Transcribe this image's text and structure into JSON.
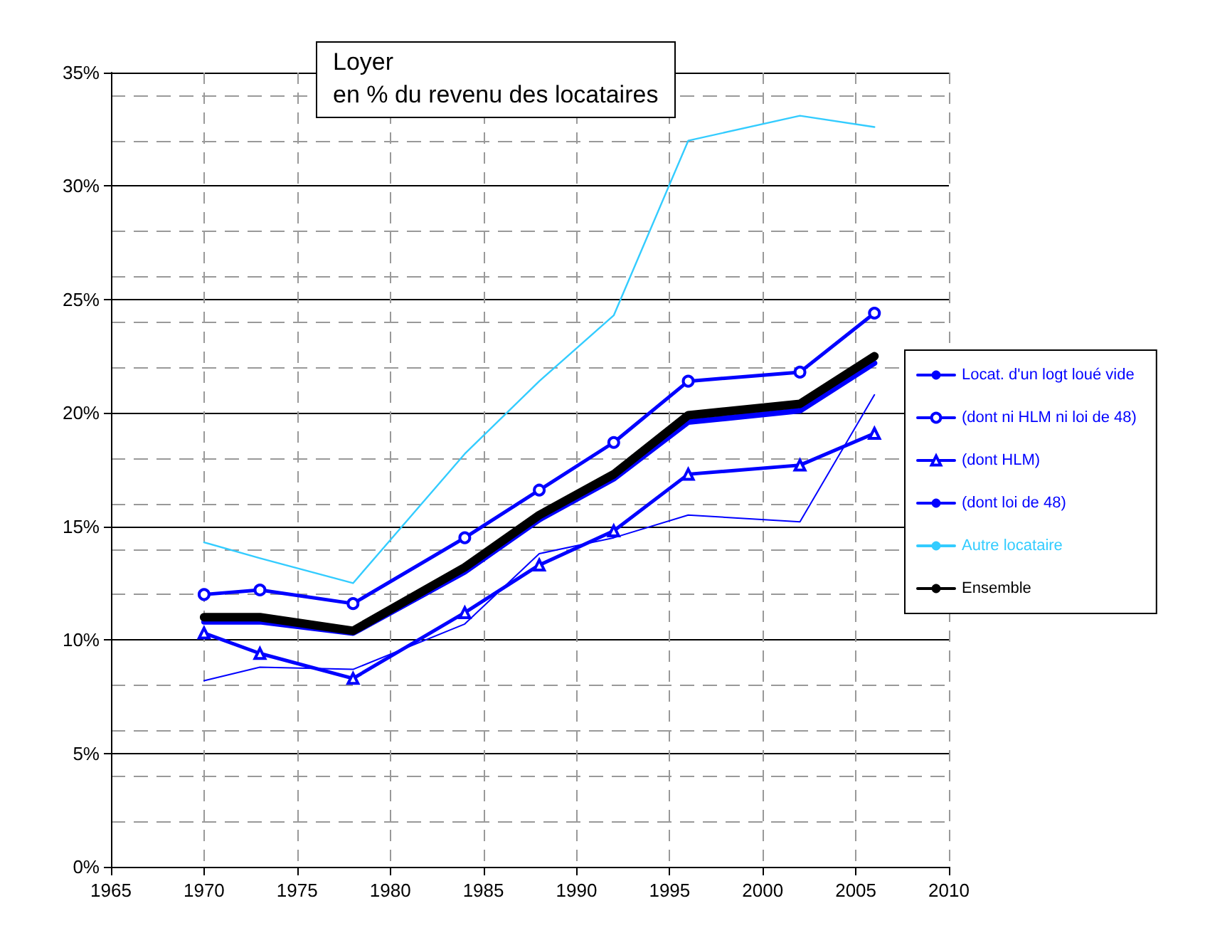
{
  "chart_data": {
    "type": "line",
    "title": "Loyer",
    "subtitle": "en % du revenu des locataires",
    "x": [
      1970,
      1973,
      1978,
      1984,
      1988,
      1992,
      1996,
      2002,
      2006
    ],
    "series": [
      {
        "name": "Locat. d'un logt loué vide",
        "color": "#0000ff",
        "marker": "none",
        "values": [
          10.8,
          10.8,
          10.3,
          13.0,
          15.3,
          17.1,
          19.6,
          20.1,
          22.2
        ]
      },
      {
        "name": "(dont ni HLM ni loi de 48)",
        "color": "#0000ff",
        "marker": "circle",
        "values": [
          12.0,
          12.2,
          11.6,
          14.5,
          16.6,
          18.7,
          21.4,
          21.8,
          24.4
        ]
      },
      {
        "name": "(dont HLM)",
        "color": "#0000ff",
        "marker": "triangle",
        "values": [
          10.3,
          9.4,
          8.3,
          11.2,
          13.3,
          14.8,
          17.3,
          17.7,
          19.1
        ]
      },
      {
        "name": "(dont loi de 48)",
        "color": "#0000ff",
        "marker": "none",
        "values": [
          8.2,
          8.8,
          8.7,
          10.7,
          13.8,
          14.5,
          15.5,
          15.2,
          20.8
        ]
      },
      {
        "name": "Autre locataire",
        "color": "#33ccff",
        "marker": "none",
        "values": [
          14.3,
          13.6,
          12.5,
          18.2,
          21.4,
          24.3,
          32.0,
          33.1,
          32.6
        ]
      },
      {
        "name": "Ensemble",
        "color": "#000000",
        "marker": "none",
        "values": [
          11.0,
          11.0,
          10.4,
          13.2,
          15.5,
          17.3,
          19.9,
          20.4,
          22.5
        ]
      }
    ],
    "xlim": [
      1965,
      2010
    ],
    "xticks": [
      1965,
      1970,
      1975,
      1980,
      1985,
      1990,
      1995,
      2000,
      2005,
      2010
    ],
    "ylim": [
      0,
      35
    ],
    "yticks": [
      {
        "value": 0,
        "label": "0%"
      },
      {
        "value": 5,
        "label": "5%"
      },
      {
        "value": 10,
        "label": "10%"
      },
      {
        "value": 15,
        "label": "15%"
      },
      {
        "value": 20,
        "label": "20%"
      },
      {
        "value": 25,
        "label": "25%"
      },
      {
        "value": 30,
        "label": "30%"
      },
      {
        "value": 35,
        "label": "35%"
      }
    ],
    "grid": true,
    "legend": "right",
    "line_style": "solid"
  }
}
